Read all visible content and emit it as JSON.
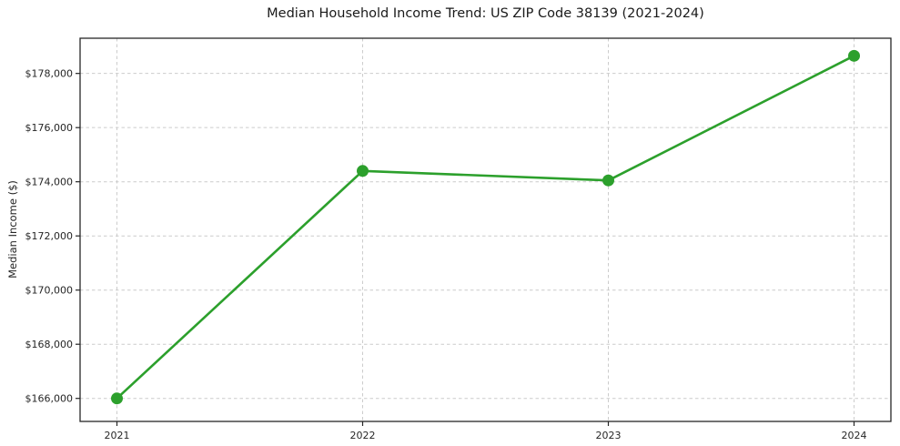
{
  "chart_data": {
    "type": "line",
    "title": "Median Household Income Trend: US ZIP Code 38139 (2021-2024)",
    "xlabel": "",
    "ylabel": "Median Income ($)",
    "x": [
      2021,
      2022,
      2023,
      2024
    ],
    "x_tick_labels": [
      "2021",
      "2022",
      "2023",
      "2024"
    ],
    "series": [
      {
        "values": [
          166000,
          174400,
          174050,
          178650
        ],
        "color": "#2ca02c",
        "marker": "circle",
        "line_width": 2.6,
        "marker_radius": 6.5
      }
    ],
    "y_ticks": [
      166000,
      168000,
      170000,
      172000,
      174000,
      176000,
      178000
    ],
    "y_tick_labels": [
      "$166,000",
      "$168,000",
      "$170,000",
      "$172,000",
      "$174,000",
      "$176,000",
      "$178,000"
    ],
    "xlim": [
      2020.85,
      2024.15
    ],
    "ylim": [
      165150,
      179300
    ],
    "grid": {
      "visible": true,
      "style": "dashed",
      "color": "#cccccc"
    },
    "axis_color": "#262626",
    "frame_color": "#262626",
    "background_color": "#ffffff",
    "legend": "none"
  }
}
